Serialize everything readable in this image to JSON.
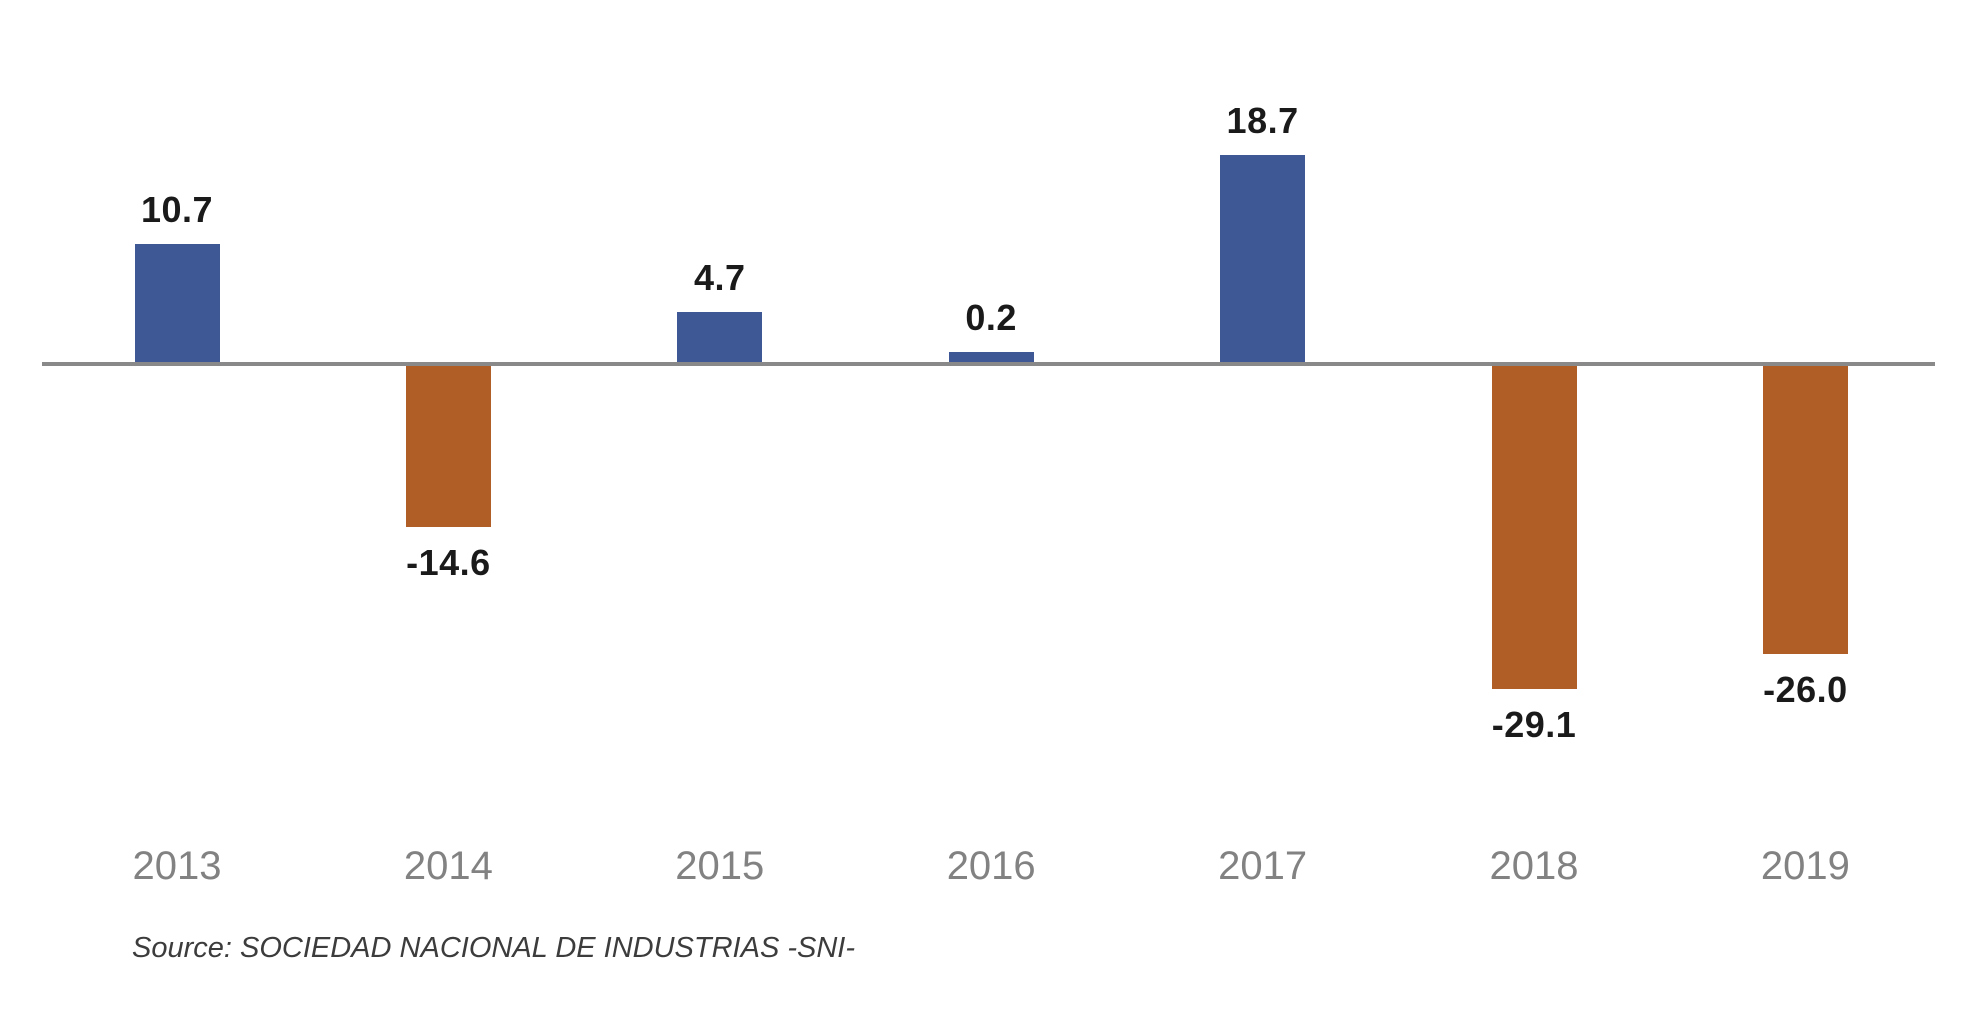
{
  "chart_data": {
    "type": "bar",
    "categories": [
      "2013",
      "2014",
      "2015",
      "2016",
      "2017",
      "2018",
      "2019"
    ],
    "values": [
      10.7,
      -14.6,
      4.7,
      0.2,
      18.7,
      -29.1,
      -26.0
    ],
    "value_labels": [
      "10.7",
      "-14.6",
      "4.7",
      "0.2",
      "18.7",
      "-29.1",
      "-26.0"
    ],
    "title": "",
    "xlabel": "",
    "ylabel": "",
    "ylim": [
      -35,
      25
    ],
    "grid": false,
    "legend": "none",
    "baseline": 0,
    "colors": {
      "positive_bar": "#3E5795",
      "negative_bar": "#B05E25",
      "axis_line": "#898989",
      "value_label": "#1A1A1A",
      "year_label": "#828282",
      "source_text": "#3C3C3C"
    },
    "source": "Source: SOCIEDAD NACIONAL DE INDUSTRIAS -SNI-"
  }
}
